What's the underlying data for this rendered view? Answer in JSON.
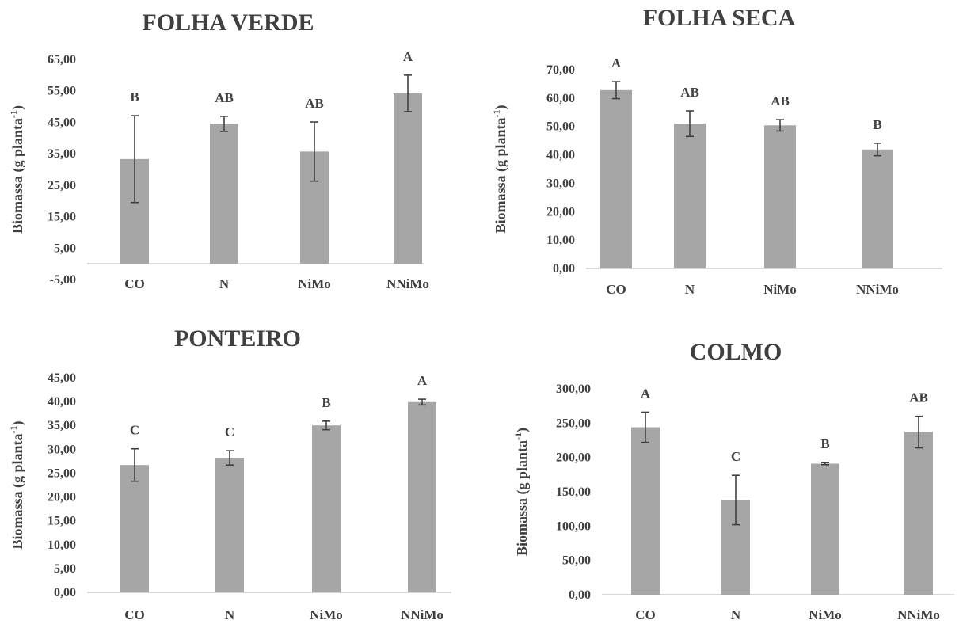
{
  "chart_data": [
    {
      "type": "bar",
      "title": "FOLHA VERDE",
      "ylabel": "Biomassa (g planta",
      "ylabel_sup": "-1",
      "ylabel_close": ")",
      "categories": [
        "CO",
        "N",
        "NiMo",
        "NNiMo"
      ],
      "values": [
        33.3,
        44.5,
        35.7,
        54.2
      ],
      "errors": [
        13.8,
        2.4,
        9.4,
        5.8
      ],
      "letters": [
        "B",
        "AB",
        "AB",
        "A"
      ],
      "ylim": [
        -5,
        65
      ],
      "yticks": [
        -5,
        5,
        15,
        25,
        35,
        45,
        55,
        65
      ],
      "ytick_labels": [
        "-5,00",
        "5,00",
        "15,00",
        "25,00",
        "35,00",
        "45,00",
        "55,00",
        "65,00"
      ],
      "grid": false
    },
    {
      "type": "bar",
      "title": "FOLHA SECA",
      "ylabel": "Biomassa (g planta",
      "ylabel_sup": "-1",
      "ylabel_close": ")",
      "categories": [
        "CO",
        "N",
        "NiMo",
        "NNiMo"
      ],
      "values": [
        62.8,
        51.0,
        50.4,
        41.9
      ],
      "errors": [
        3.0,
        4.5,
        2.0,
        2.2
      ],
      "letters": [
        "A",
        "AB",
        "AB",
        "B"
      ],
      "ylim": [
        0,
        70
      ],
      "yticks": [
        0,
        10,
        20,
        30,
        40,
        50,
        60,
        70
      ],
      "ytick_labels": [
        "0,00",
        "10,00",
        "20,00",
        "30,00",
        "40,00",
        "50,00",
        "60,00",
        "70,00"
      ],
      "grid": false
    },
    {
      "type": "bar",
      "title": "PONTEIRO",
      "ylabel": "Biomassa (g planta",
      "ylabel_sup": "-1",
      "ylabel_close": ")",
      "categories": [
        "CO",
        "N",
        "NiMo",
        "NNiMo"
      ],
      "values": [
        26.7,
        28.2,
        35.0,
        39.9
      ],
      "errors": [
        3.4,
        1.5,
        0.9,
        0.6
      ],
      "letters": [
        "C",
        "C",
        "B",
        "A"
      ],
      "ylim": [
        0,
        45
      ],
      "yticks": [
        0,
        5,
        10,
        15,
        20,
        25,
        30,
        35,
        40,
        45
      ],
      "ytick_labels": [
        "0,00",
        "5,00",
        "10,00",
        "15,00",
        "20,00",
        "25,00",
        "30,00",
        "35,00",
        "40,00",
        "45,00"
      ],
      "grid": false
    },
    {
      "type": "bar",
      "title": "COLMO",
      "ylabel": "Biomassa (g planta",
      "ylabel_sup": "-1",
      "ylabel_close": ")",
      "categories": [
        "CO",
        "N",
        "NiMo",
        "NNiMo"
      ],
      "values": [
        244,
        138,
        191,
        237
      ],
      "errors": [
        22,
        36,
        1.5,
        23
      ],
      "letters": [
        "A",
        "C",
        "B",
        "AB"
      ],
      "ylim": [
        0,
        300
      ],
      "yticks": [
        0,
        50,
        100,
        150,
        200,
        250,
        300
      ],
      "ytick_labels": [
        "0,00",
        "50,00",
        "100,00",
        "150,00",
        "200,00",
        "250,00",
        "300,00"
      ],
      "grid": false
    }
  ]
}
